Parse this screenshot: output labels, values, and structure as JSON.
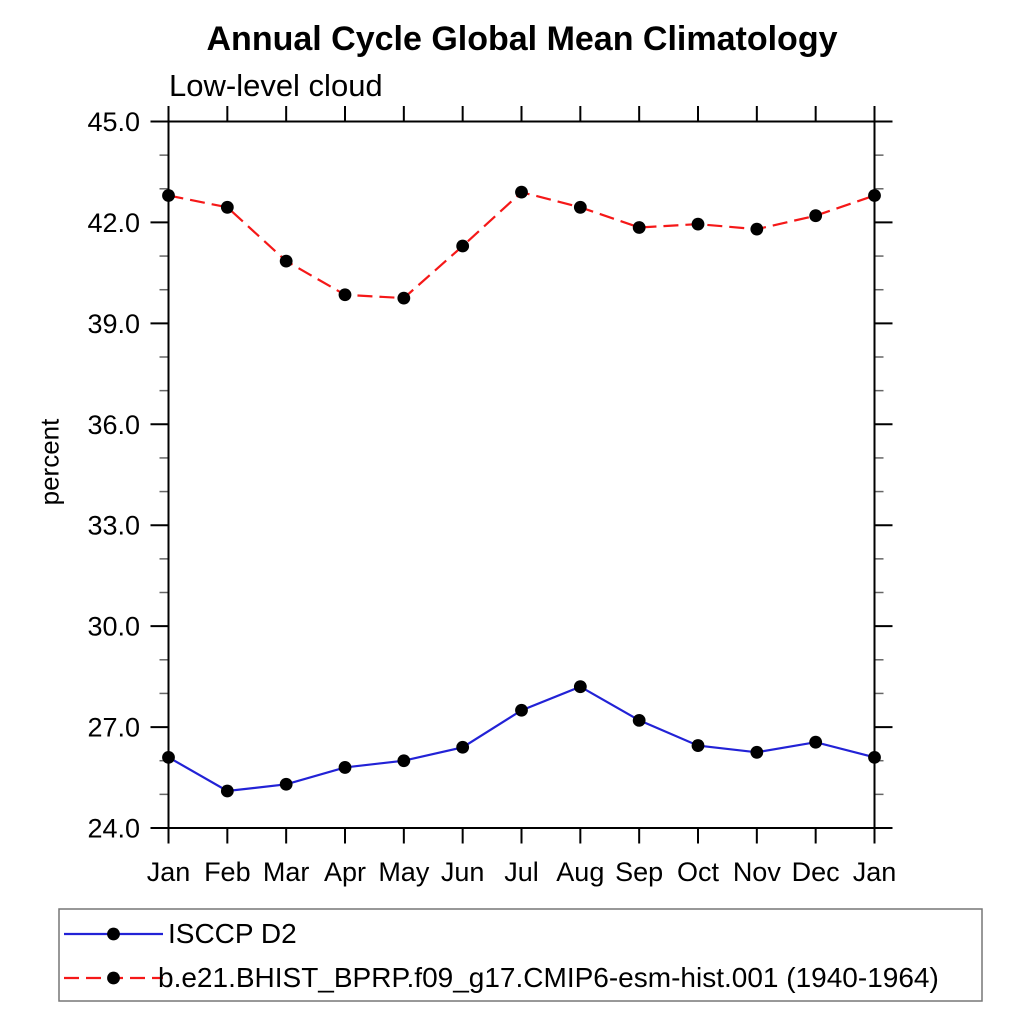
{
  "figure": {
    "background": "#ffffff",
    "text_color": "#000000"
  },
  "chart_data": {
    "type": "line",
    "title": "Annual Cycle Global Mean Climatology",
    "subtitle": "Low-level cloud",
    "ylabel": "percent",
    "xlabel": "",
    "categories": [
      "Jan",
      "Feb",
      "Mar",
      "Apr",
      "May",
      "Jun",
      "Jul",
      "Aug",
      "Sep",
      "Oct",
      "Nov",
      "Dec",
      "Jan"
    ],
    "series": [
      {
        "name": "ISCCP D2",
        "color": "#2222d6",
        "line_style": "solid",
        "marker": "filled-circle",
        "marker_color": "#000000",
        "values": [
          26.1,
          25.1,
          25.3,
          25.8,
          26.0,
          26.4,
          27.5,
          28.2,
          27.2,
          26.45,
          26.25,
          26.55,
          26.1
        ]
      },
      {
        "name": "b.e21.BHIST_BPRP.f09_g17.CMIP6-esm-hist.001 (1940-1964)",
        "color": "#f51818",
        "line_style": "dashed",
        "marker": "filled-circle",
        "marker_color": "#000000",
        "values": [
          42.8,
          42.45,
          40.85,
          39.85,
          39.75,
          41.3,
          42.9,
          42.45,
          41.85,
          41.95,
          41.8,
          42.2,
          42.8
        ]
      }
    ],
    "ylim": [
      24.0,
      45.0
    ],
    "yticks_major": [
      24.0,
      27.0,
      30.0,
      33.0,
      36.0,
      39.0,
      42.0,
      45.0
    ],
    "ytick_minor_step": 1.0,
    "ytick_label_decimals": 1,
    "grid": false,
    "frame": "box-with-outward-ticks-all-sides",
    "legend_position": "bottom-left-boxed",
    "axis_color": "#000000",
    "minor_tick_color": "#666666",
    "legend_border_color": "#777777"
  }
}
